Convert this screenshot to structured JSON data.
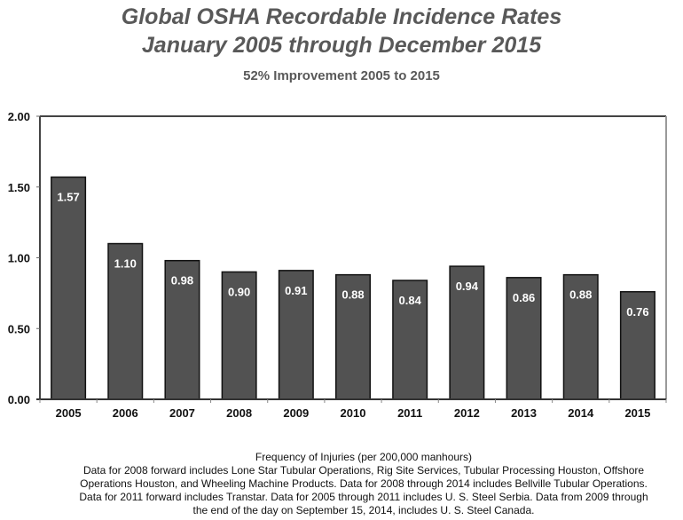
{
  "chart_data": {
    "type": "bar",
    "title": "Global OSHA Recordable Incidence Rates",
    "title_line2": "January 2005 through December 2015",
    "subtitle": "52% Improvement 2005 to 2015",
    "categories": [
      "2005",
      "2006",
      "2007",
      "2008",
      "2009",
      "2010",
      "2011",
      "2012",
      "2013",
      "2014",
      "2015"
    ],
    "values": [
      1.57,
      1.1,
      0.98,
      0.9,
      0.91,
      0.88,
      0.84,
      0.94,
      0.86,
      0.88,
      0.76
    ],
    "data_labels": [
      "1.57",
      "1.10",
      "0.98",
      "0.90",
      "0.91",
      "0.88",
      "0.84",
      "0.94",
      "0.86",
      "0.88",
      "0.76"
    ],
    "yticks": [
      "0.00",
      "0.50",
      "1.00",
      "1.50",
      "2.00"
    ],
    "ytick_values": [
      0,
      0.5,
      1.0,
      1.5,
      2.0
    ],
    "ylim": [
      0,
      2.0
    ],
    "xlabel": "Frequency of Injuries (per 200,000 manhours)",
    "ylabel": "",
    "grid": false,
    "legend": "none",
    "bar_color": "#525252",
    "label_color": "#ffffff"
  },
  "footnote": {
    "lines": [
      "Frequency of Injuries (per 200,000 manhours)",
      "Data for 2008 forward includes Lone Star Tubular Operations, Rig Site Services, Tubular Processing  Houston, Offshore",
      "Operations Houston, and Wheeling Machine Products.  Data for 2008 through 2014 includes Bellville Tubular Operations.",
      "Data for 2011 forward includes Transtar.  Data for 2005 through 2011 includes U. S. Steel Serbia.  Data from 2009 through",
      "the end of the day on September 15, 2014, includes U. S. Steel Canada."
    ]
  }
}
